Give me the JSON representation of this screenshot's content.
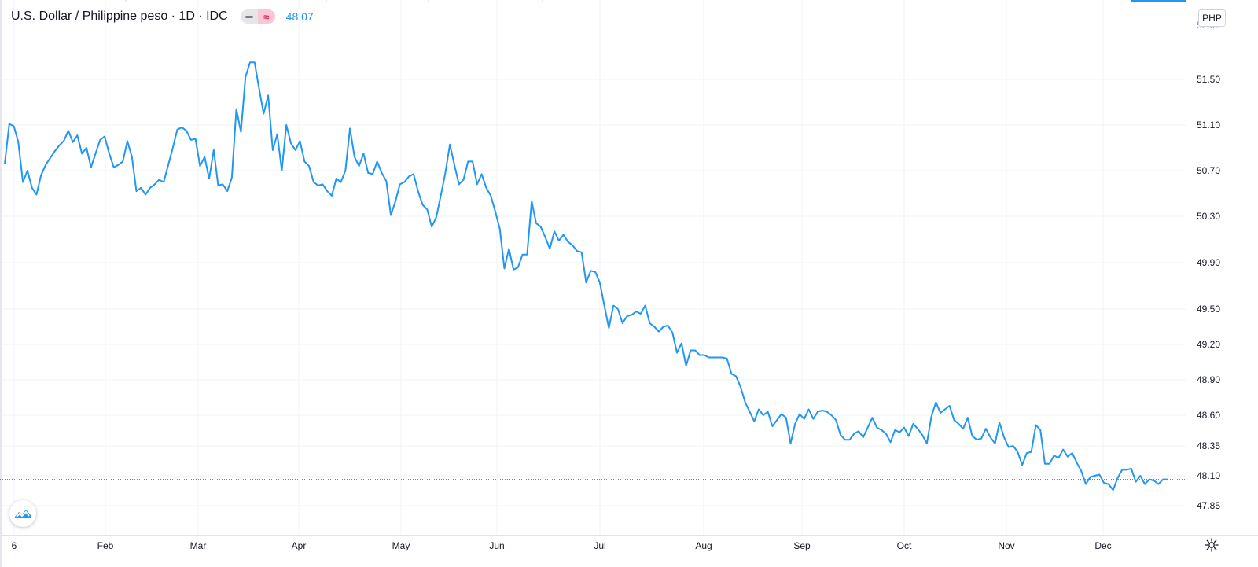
{
  "legend": {
    "title": "U.S. Dollar / Philippine peso · 1D · IDC",
    "last_value": "48.07"
  },
  "currency_label": "PHP",
  "colors": {
    "line": "#2196f3",
    "grid": "#f0f3fa",
    "text": "#131722",
    "axis_text": "#131722"
  },
  "icons": {
    "logo": "tradingview-logo-icon",
    "settings": "gear-icon",
    "hide": "minus-icon",
    "compare": "approx-icon"
  },
  "chart_data": {
    "type": "line",
    "series": [
      {
        "values": [
          50.76,
          51.11,
          51.09,
          50.95,
          50.6,
          50.7,
          50.55,
          50.49,
          50.66,
          50.75,
          50.81,
          50.87,
          50.92,
          50.96,
          51.05,
          50.95,
          51.01,
          50.85,
          50.9,
          50.73,
          50.85,
          50.97,
          51.0,
          50.85,
          50.73,
          50.75,
          50.78,
          50.96,
          50.82,
          50.52,
          50.55,
          50.49,
          50.55,
          50.58,
          50.62,
          50.6,
          50.75,
          50.9,
          51.06,
          51.08,
          51.05,
          50.97,
          50.98,
          50.74,
          50.82,
          50.63,
          50.88,
          50.57,
          50.58,
          50.52,
          50.64,
          51.24,
          51.04,
          51.52,
          51.65,
          51.65,
          51.42,
          51.2,
          51.36,
          50.88,
          51.02,
          50.7,
          51.1,
          50.94,
          50.88,
          50.96,
          50.78,
          50.74,
          50.6,
          50.57,
          50.58,
          50.52,
          50.48,
          50.63,
          50.6,
          50.7,
          51.07,
          50.82,
          50.74,
          50.85,
          50.68,
          50.67,
          50.78,
          50.68,
          50.61,
          50.31,
          50.43,
          50.58,
          50.6,
          50.65,
          50.67,
          50.52,
          50.4,
          50.36,
          50.21,
          50.29,
          50.48,
          50.68,
          50.93,
          50.75,
          50.58,
          50.62,
          50.78,
          50.78,
          50.58,
          50.67,
          50.55,
          50.48,
          50.34,
          50.19,
          49.85,
          50.02,
          49.84,
          49.86,
          49.97,
          49.97,
          50.43,
          50.24,
          50.21,
          50.12,
          50.02,
          50.17,
          50.09,
          50.14,
          50.08,
          50.05,
          50.0,
          49.99,
          49.73,
          49.83,
          49.82,
          49.73,
          49.53,
          49.34,
          49.53,
          49.5,
          49.38,
          49.44,
          49.45,
          49.48,
          49.46,
          49.53,
          49.38,
          49.35,
          49.31,
          49.35,
          49.36,
          49.3,
          49.13,
          49.21,
          49.02,
          49.15,
          49.15,
          49.11,
          49.11,
          49.09,
          49.09,
          49.09,
          49.09,
          49.08,
          48.95,
          48.93,
          48.84,
          48.71,
          48.63,
          48.55,
          48.65,
          48.6,
          48.63,
          48.51,
          48.56,
          48.61,
          48.58,
          48.37,
          48.53,
          48.61,
          48.57,
          48.65,
          48.57,
          48.63,
          48.64,
          48.63,
          48.6,
          48.56,
          48.44,
          48.4,
          48.4,
          48.45,
          48.47,
          48.42,
          48.5,
          48.58,
          48.5,
          48.48,
          48.45,
          48.38,
          48.48,
          48.46,
          48.5,
          48.43,
          48.53,
          48.49,
          48.44,
          48.37,
          48.59,
          48.71,
          48.62,
          48.65,
          48.68,
          48.56,
          48.53,
          48.49,
          48.58,
          48.43,
          48.4,
          48.41,
          48.49,
          48.42,
          48.37,
          48.54,
          48.42,
          48.34,
          48.35,
          48.3,
          48.19,
          48.29,
          48.3,
          48.52,
          48.48,
          48.2,
          48.2,
          48.27,
          48.25,
          48.32,
          48.26,
          48.29,
          48.21,
          48.14,
          48.03,
          48.09,
          48.1,
          48.11,
          48.04,
          48.03,
          47.98,
          48.08,
          48.15,
          48.15,
          48.16,
          48.05,
          48.1,
          48.03,
          48.07,
          48.06,
          48.03,
          48.07,
          48.07
        ]
      }
    ],
    "x_tick_labels": [
      "6",
      "Feb",
      "Mar",
      "Apr",
      "May",
      "Jun",
      "Jul",
      "Aug",
      "Sep",
      "Oct",
      "Nov",
      "Dec"
    ],
    "y_tick_labels": [
      "51.50",
      "51.10",
      "50.70",
      "50.30",
      "49.90",
      "49.50",
      "49.20",
      "48.90",
      "48.60",
      "48.35",
      "48.10",
      "47.85"
    ],
    "last_price": 48.07,
    "y_unit": "PHP",
    "grid": true
  }
}
